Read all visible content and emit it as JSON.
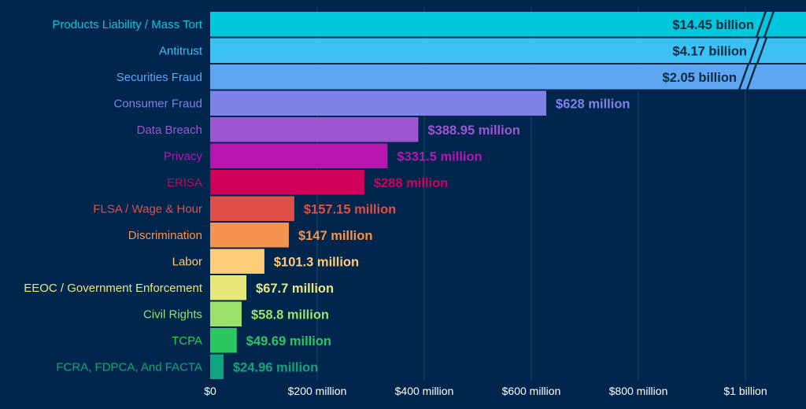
{
  "chart_data": {
    "type": "bar",
    "orientation": "horizontal",
    "title": "",
    "xlabel": "",
    "ylabel": "",
    "xlim": [
      0,
      1100
    ],
    "unit": "million",
    "grid": true,
    "axis_break": true,
    "categories": [
      "Products Liability / Mass Tort",
      "Antitrust",
      "Securities Fraud",
      "Consumer Fraud",
      "Data Breach",
      "Privacy",
      "ERISA",
      "FLSA / Wage & Hour",
      "Discrimination",
      "Labor",
      "EEOC / Government Enforcement",
      "Civil Rights",
      "TCPA",
      "FCRA, FDPCA, And FACTA"
    ],
    "values": [
      14450,
      4170,
      2050,
      628,
      388.95,
      331.5,
      288,
      157.15,
      147,
      101.3,
      67.7,
      58.8,
      49.69,
      24.96
    ],
    "value_labels": [
      "$14.45 billion",
      "$4.17 billion",
      "$2.05 billion",
      "$628 million",
      "$388.95 million",
      "$331.5 million",
      "$288 million",
      "$157.15 million",
      "$147 million",
      "$101.3 million",
      "$67.7 million",
      "$58.8 million",
      "$49.69 million",
      "$24.96 million"
    ],
    "colors": [
      "#00c8dc",
      "#3cc0f4",
      "#5fa6f2",
      "#7f82e6",
      "#9c55ce",
      "#b815b0",
      "#d0005a",
      "#de5047",
      "#f5934f",
      "#ffcc77",
      "#e8e87a",
      "#9ee06c",
      "#2bc862",
      "#0ea57e"
    ],
    "ticks": [
      0,
      200,
      400,
      600,
      800,
      1000
    ],
    "tick_labels": [
      "$0",
      "$200 million",
      "$400 million",
      "$600 million",
      "$800 million",
      "$1 billion"
    ]
  }
}
